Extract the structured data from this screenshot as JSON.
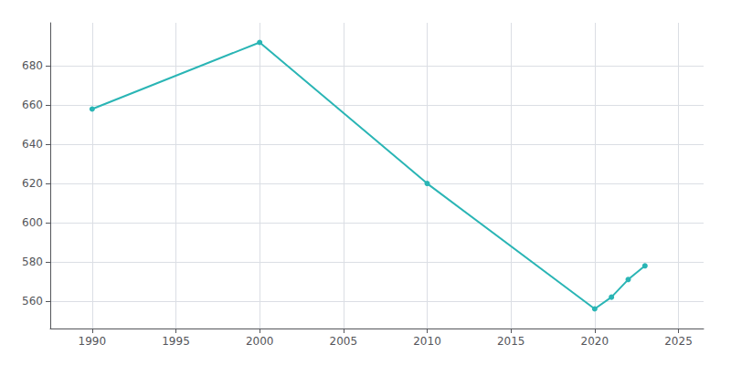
{
  "chart_data": {
    "type": "line",
    "x": [
      1990,
      2000,
      2010,
      2020,
      2021,
      2022,
      2023
    ],
    "values": [
      658,
      692,
      620,
      556,
      562,
      571,
      578
    ],
    "color": "#2ab5b5",
    "marker": "circle",
    "xlim": [
      1987.5,
      2026.5
    ],
    "xticks": [
      1990,
      1995,
      2000,
      2005,
      2010,
      2015,
      2020,
      2025
    ],
    "ylim": [
      546,
      702
    ],
    "yticks": [
      560,
      580,
      600,
      620,
      640,
      660,
      680
    ],
    "grid": true
  }
}
